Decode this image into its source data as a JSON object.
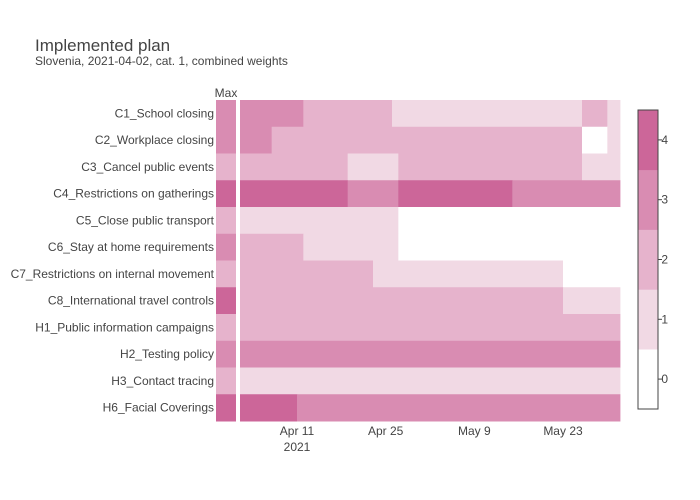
{
  "chart_data": {
    "type": "heatmap",
    "title": "Implemented plan",
    "subtitle": "Slovenia, 2021-04-02, cat. 1, combined weights",
    "max_column_label": "Max",
    "x_start": "2021-04-02",
    "x_end": "2021-06-01",
    "x_ticks": [
      {
        "date": "2021-04-11",
        "label": "Apr 11",
        "year": "2021"
      },
      {
        "date": "2021-04-25",
        "label": "Apr 25"
      },
      {
        "date": "2021-05-09",
        "label": "May 9"
      },
      {
        "date": "2021-05-23",
        "label": "May 23"
      }
    ],
    "colorscale": {
      "range": [
        -0.5,
        4.5
      ],
      "ticks": [
        0,
        1,
        2,
        3,
        4
      ],
      "colors": [
        "#ffffff",
        "#f1d9e4",
        "#e6b3cc",
        "#d98cb2",
        "#cc6699"
      ]
    },
    "rows": [
      {
        "label": "C1_School closing",
        "max": 3,
        "segments": [
          {
            "start": "2021-04-02",
            "end": "2021-04-12",
            "value": 3
          },
          {
            "start": "2021-04-12",
            "end": "2021-04-26",
            "value": 2
          },
          {
            "start": "2021-04-26",
            "end": "2021-05-26",
            "value": 1
          },
          {
            "start": "2021-05-26",
            "end": "2021-05-30",
            "value": 2
          },
          {
            "start": "2021-05-30",
            "end": "2021-06-01",
            "value": 1
          }
        ]
      },
      {
        "label": "C2_Workplace closing",
        "max": 3,
        "segments": [
          {
            "start": "2021-04-02",
            "end": "2021-04-07",
            "value": 3
          },
          {
            "start": "2021-04-07",
            "end": "2021-05-26",
            "value": 2
          },
          {
            "start": "2021-05-26",
            "end": "2021-05-30",
            "value": 0
          },
          {
            "start": "2021-05-30",
            "end": "2021-06-01",
            "value": 1
          }
        ]
      },
      {
        "label": "C3_Cancel public events",
        "max": 2,
        "segments": [
          {
            "start": "2021-04-02",
            "end": "2021-04-19",
            "value": 2
          },
          {
            "start": "2021-04-19",
            "end": "2021-04-27",
            "value": 1
          },
          {
            "start": "2021-04-27",
            "end": "2021-05-26",
            "value": 2
          },
          {
            "start": "2021-05-26",
            "end": "2021-06-01",
            "value": 1
          }
        ]
      },
      {
        "label": "C4_Restrictions on gatherings",
        "max": 4,
        "segments": [
          {
            "start": "2021-04-02",
            "end": "2021-04-19",
            "value": 4
          },
          {
            "start": "2021-04-19",
            "end": "2021-04-27",
            "value": 3
          },
          {
            "start": "2021-04-27",
            "end": "2021-05-15",
            "value": 4
          },
          {
            "start": "2021-05-15",
            "end": "2021-06-01",
            "value": 3
          }
        ]
      },
      {
        "label": "C5_Close public transport",
        "max": 2,
        "segments": [
          {
            "start": "2021-04-02",
            "end": "2021-04-27",
            "value": 1
          },
          {
            "start": "2021-04-27",
            "end": "2021-06-01",
            "value": 0
          }
        ]
      },
      {
        "label": "C6_Stay at home requirements",
        "max": 3,
        "segments": [
          {
            "start": "2021-04-02",
            "end": "2021-04-12",
            "value": 2
          },
          {
            "start": "2021-04-12",
            "end": "2021-04-27",
            "value": 1
          },
          {
            "start": "2021-04-27",
            "end": "2021-06-01",
            "value": 0
          }
        ]
      },
      {
        "label": "C7_Restrictions on internal movement",
        "max": 2,
        "segments": [
          {
            "start": "2021-04-02",
            "end": "2021-04-23",
            "value": 2
          },
          {
            "start": "2021-04-23",
            "end": "2021-05-23",
            "value": 1
          },
          {
            "start": "2021-05-23",
            "end": "2021-06-01",
            "value": 0
          }
        ]
      },
      {
        "label": "C8_International travel controls",
        "max": 4,
        "segments": [
          {
            "start": "2021-04-02",
            "end": "2021-05-23",
            "value": 2
          },
          {
            "start": "2021-05-23",
            "end": "2021-06-01",
            "value": 1
          }
        ]
      },
      {
        "label": "H1_Public information campaigns",
        "max": 2,
        "segments": [
          {
            "start": "2021-04-02",
            "end": "2021-06-01",
            "value": 2
          }
        ]
      },
      {
        "label": "H2_Testing policy",
        "max": 3,
        "segments": [
          {
            "start": "2021-04-02",
            "end": "2021-06-01",
            "value": 3
          }
        ]
      },
      {
        "label": "H3_Contact tracing",
        "max": 2,
        "segments": [
          {
            "start": "2021-04-02",
            "end": "2021-06-01",
            "value": 1
          }
        ]
      },
      {
        "label": "H6_Facial Coverings",
        "max": 4,
        "segments": [
          {
            "start": "2021-04-02",
            "end": "2021-04-11",
            "value": 4
          },
          {
            "start": "2021-04-11",
            "end": "2021-06-01",
            "value": 3
          }
        ]
      }
    ]
  }
}
